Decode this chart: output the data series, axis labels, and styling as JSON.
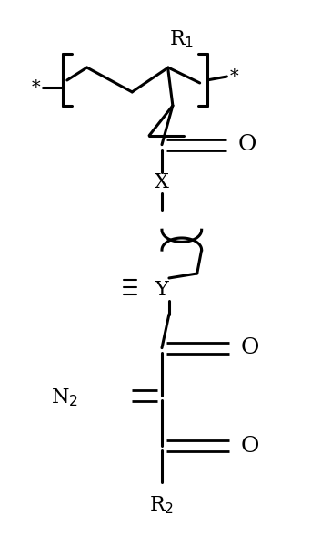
{
  "background": "#ffffff",
  "figsize": [
    3.53,
    6.0
  ],
  "dpi": 100,
  "R1_label": "R$_1$",
  "R2_label": "R$_2$",
  "X_label": "X",
  "Y_label": "Y",
  "N2_label": "N$_2$",
  "O_label": "O",
  "star": "*",
  "lw": 2.2,
  "lw_double": 2.0,
  "fs": 16,
  "fs_sub": 13
}
